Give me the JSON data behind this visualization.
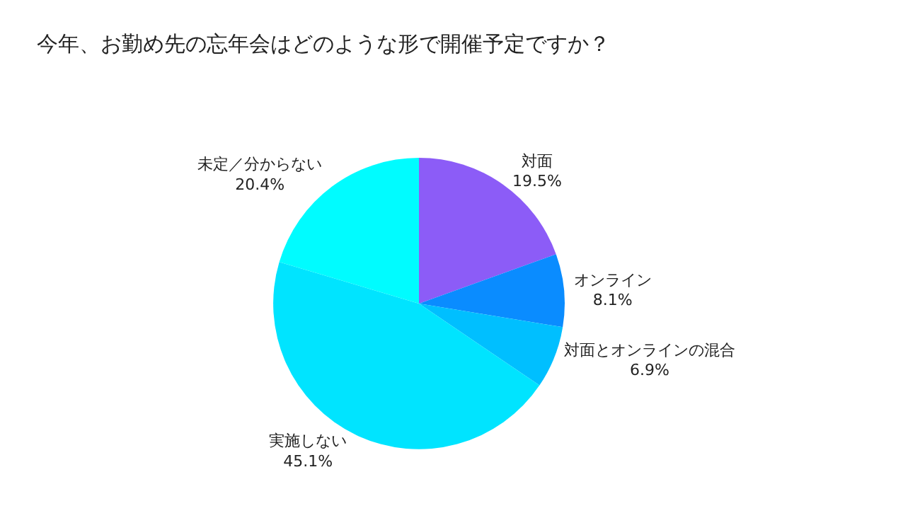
{
  "chart_data": {
    "type": "pie",
    "title": "今年、お勤め先の忘年会はどのような形で開催予定ですか？",
    "categories": [
      "対面",
      "オンライン",
      "対面とオンラインの混合",
      "実施しない",
      "未定／分からない"
    ],
    "values": [
      19.5,
      8.1,
      6.9,
      45.1,
      20.4
    ],
    "colors": [
      "#8c5cf7",
      "#0a8cff",
      "#00bfff",
      "#00e4ff",
      "#00fcff"
    ],
    "value_labels": [
      "19.5%",
      "8.1%",
      "6.9%",
      "45.1%",
      "20.4%"
    ],
    "legend": false
  }
}
